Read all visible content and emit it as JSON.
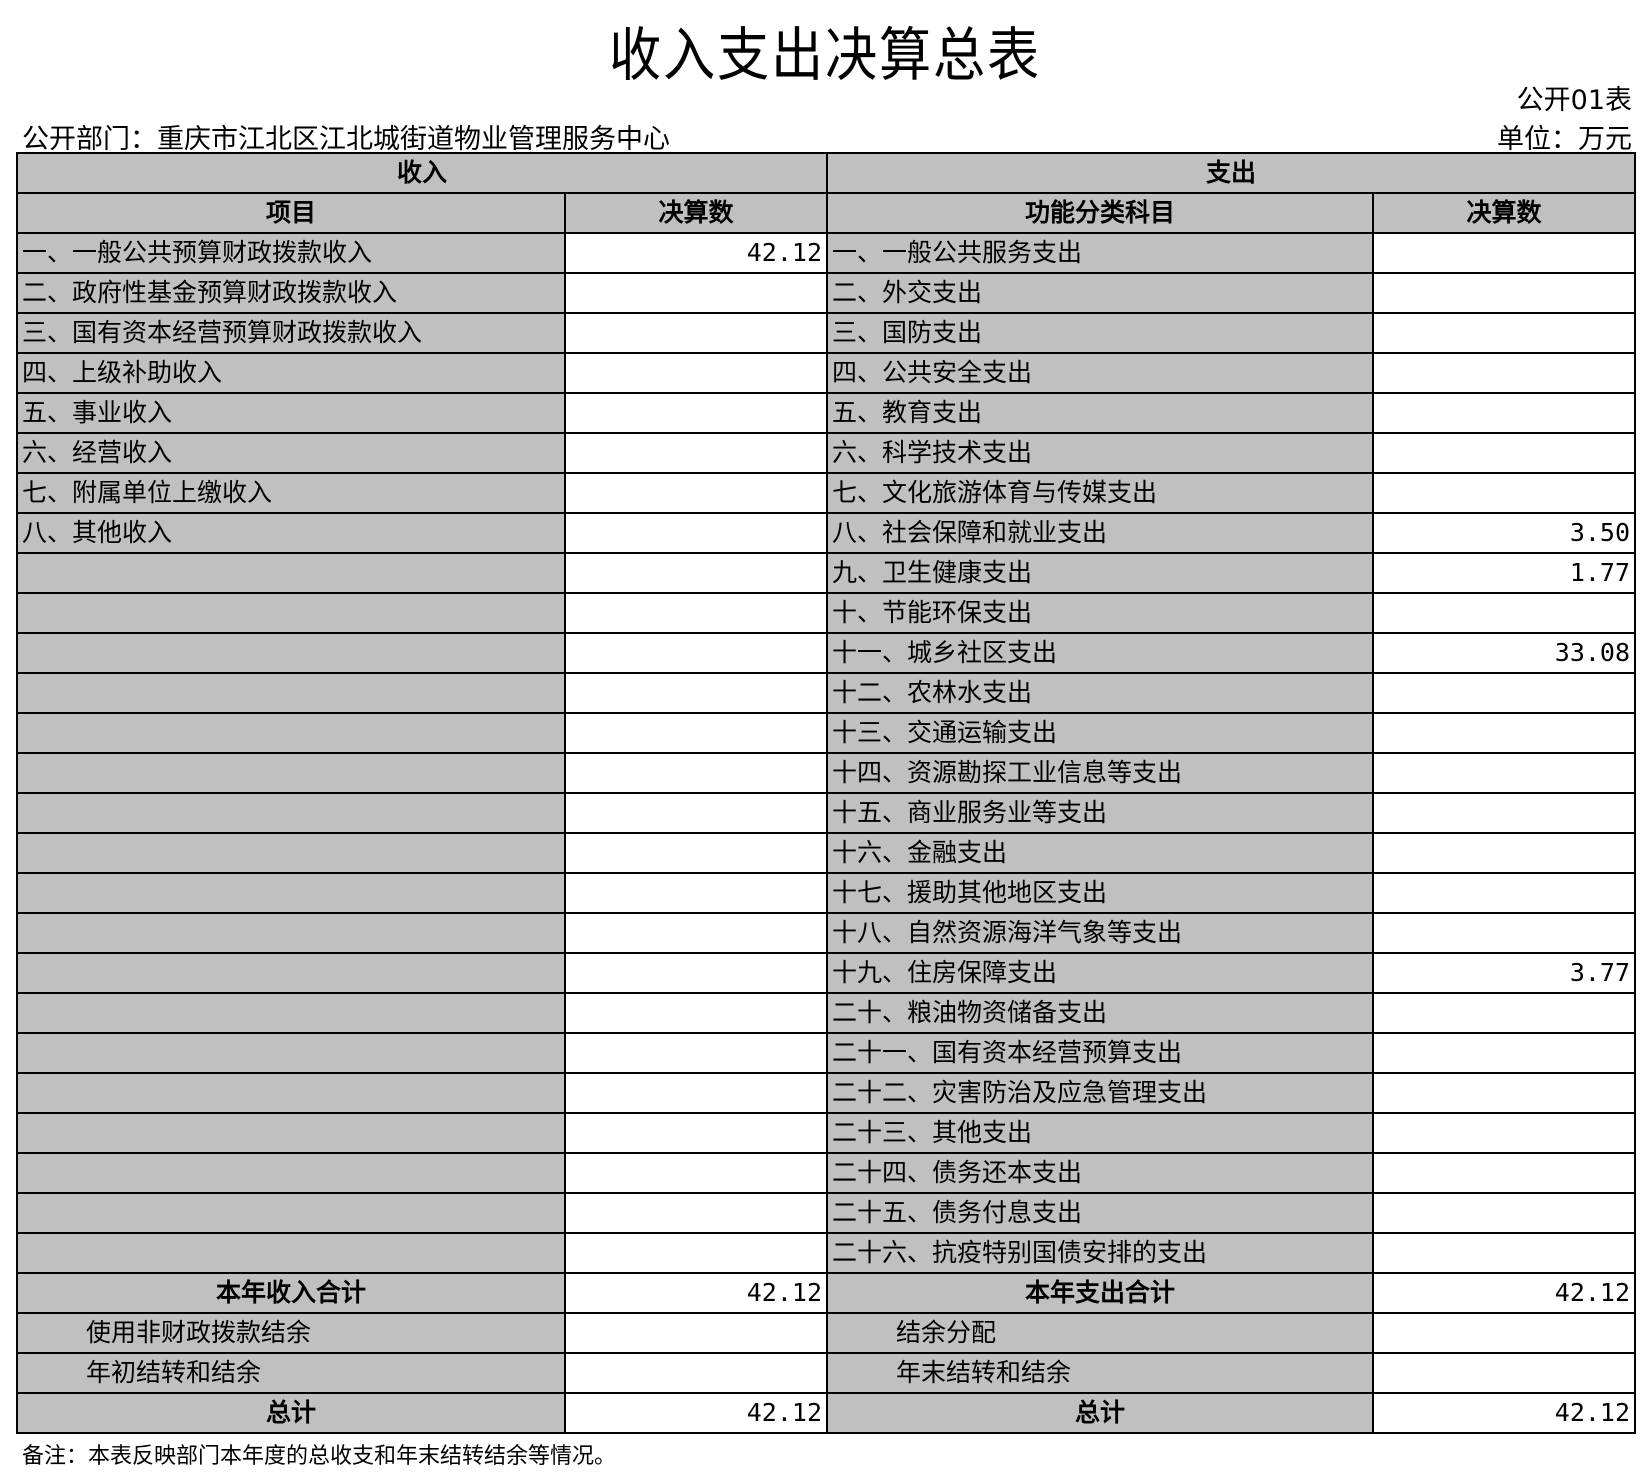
{
  "title": "收入支出决算总表",
  "table_no": "公开01表",
  "department": "公开部门：重庆市江北区江北城街道物业管理服务中心",
  "unit": "单位：万元",
  "headers": {
    "income": "收入",
    "expense": "支出",
    "item": "项目",
    "amount": "决算数",
    "func": "功能分类科目",
    "amount2": "决算数"
  },
  "rows": [
    {
      "inc": "一、一般公共预算财政拨款收入",
      "inc_v": "42.12",
      "exp": "一、一般公共服务支出",
      "exp_v": ""
    },
    {
      "inc": "二、政府性基金预算财政拨款收入",
      "inc_v": "",
      "exp": "二、外交支出",
      "exp_v": ""
    },
    {
      "inc": "三、国有资本经营预算财政拨款收入",
      "inc_v": "",
      "exp": "三、国防支出",
      "exp_v": ""
    },
    {
      "inc": "四、上级补助收入",
      "inc_v": "",
      "exp": "四、公共安全支出",
      "exp_v": ""
    },
    {
      "inc": "五、事业收入",
      "inc_v": "",
      "exp": "五、教育支出",
      "exp_v": ""
    },
    {
      "inc": "六、经营收入",
      "inc_v": "",
      "exp": "六、科学技术支出",
      "exp_v": ""
    },
    {
      "inc": "七、附属单位上缴收入",
      "inc_v": "",
      "exp": "七、文化旅游体育与传媒支出",
      "exp_v": ""
    },
    {
      "inc": "八、其他收入",
      "inc_v": "",
      "exp": "八、社会保障和就业支出",
      "exp_v": "3.50"
    },
    {
      "inc": "",
      "inc_v": "",
      "exp": "九、卫生健康支出",
      "exp_v": "1.77"
    },
    {
      "inc": "",
      "inc_v": "",
      "exp": "十、节能环保支出",
      "exp_v": ""
    },
    {
      "inc": "",
      "inc_v": "",
      "exp": "十一、城乡社区支出",
      "exp_v": "33.08"
    },
    {
      "inc": "",
      "inc_v": "",
      "exp": "十二、农林水支出",
      "exp_v": ""
    },
    {
      "inc": "",
      "inc_v": "",
      "exp": "十三、交通运输支出",
      "exp_v": ""
    },
    {
      "inc": "",
      "inc_v": "",
      "exp": "十四、资源勘探工业信息等支出",
      "exp_v": ""
    },
    {
      "inc": "",
      "inc_v": "",
      "exp": "十五、商业服务业等支出",
      "exp_v": ""
    },
    {
      "inc": "",
      "inc_v": "",
      "exp": "十六、金融支出",
      "exp_v": ""
    },
    {
      "inc": "",
      "inc_v": "",
      "exp": "十七、援助其他地区支出",
      "exp_v": ""
    },
    {
      "inc": "",
      "inc_v": "",
      "exp": "十八、自然资源海洋气象等支出",
      "exp_v": ""
    },
    {
      "inc": "",
      "inc_v": "",
      "exp": "十九、住房保障支出",
      "exp_v": "3.77"
    },
    {
      "inc": "",
      "inc_v": "",
      "exp": "二十、粮油物资储备支出",
      "exp_v": ""
    },
    {
      "inc": "",
      "inc_v": "",
      "exp": "二十一、国有资本经营预算支出",
      "exp_v": ""
    },
    {
      "inc": "",
      "inc_v": "",
      "exp": "二十二、灾害防治及应急管理支出",
      "exp_v": ""
    },
    {
      "inc": "",
      "inc_v": "",
      "exp": "二十三、其他支出",
      "exp_v": ""
    },
    {
      "inc": "",
      "inc_v": "",
      "exp": "二十四、债务还本支出",
      "exp_v": ""
    },
    {
      "inc": "",
      "inc_v": "",
      "exp": "二十五、债务付息支出",
      "exp_v": ""
    },
    {
      "inc": "",
      "inc_v": "",
      "exp": "二十六、抗疫特别国债安排的支出",
      "exp_v": ""
    }
  ],
  "summary": [
    {
      "inc": "本年收入合计",
      "inc_v": "42.12",
      "exp": "本年支出合计",
      "exp_v": "42.12",
      "bold": true
    },
    {
      "inc": "使用非财政拨款结余",
      "inc_v": "",
      "exp": "结余分配",
      "exp_v": "",
      "bold": false
    },
    {
      "inc": "年初结转和结余",
      "inc_v": "",
      "exp": "年末结转和结余",
      "exp_v": "",
      "bold": false
    },
    {
      "inc": "总计",
      "inc_v": "42.12",
      "exp": "总计",
      "exp_v": "42.12",
      "bold": true
    }
  ],
  "note": "备注：本表反映部门本年度的总收支和年末结转结余等情况。",
  "colors": {
    "header_gray": "#c0c0c0"
  }
}
